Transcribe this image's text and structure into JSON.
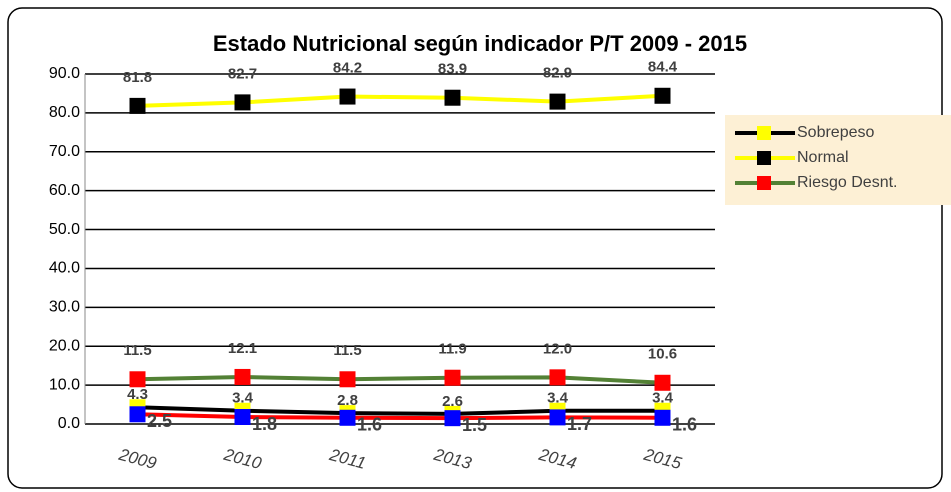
{
  "chart_data": {
    "type": "line",
    "title": "Estado Nutricional según indicador P/T 2009 - 2015",
    "categories": [
      "2009",
      "2010",
      "2011",
      "2013",
      "2014",
      "2015"
    ],
    "series": [
      {
        "name": "Sobrepeso",
        "color": "#000000",
        "marker_color": "#ffff00",
        "values": [
          4.3,
          3.4,
          2.8,
          2.6,
          3.4,
          3.4
        ]
      },
      {
        "name": "Normal",
        "color": "#ffff00",
        "marker_color": "#000000",
        "values": [
          81.8,
          82.7,
          84.2,
          83.9,
          82.9,
          84.4
        ]
      },
      {
        "name": "Riesgo Desnt.",
        "color": "#538135",
        "marker_color": "#ff0000",
        "values": [
          11.5,
          12.1,
          11.5,
          11.9,
          12.0,
          10.6
        ],
        "value_labels": [
          "11.5",
          "12.1",
          "11.5",
          "11.9",
          "12.0",
          "10.6"
        ]
      },
      {
        "color": "#ff0000",
        "marker_color": "#0000ff",
        "values": [
          2.5,
          1.8,
          1.6,
          1.5,
          1.7,
          1.6
        ]
      }
    ],
    "ylim": [
      0,
      90
    ],
    "yticks": [
      {
        "value": 0,
        "label": "0.0"
      },
      {
        "value": 10,
        "label": "10.0"
      },
      {
        "value": 20,
        "label": "20.0"
      },
      {
        "value": 30,
        "label": "30.0"
      },
      {
        "value": 40,
        "label": "40.0"
      },
      {
        "value": 50,
        "label": "50.0"
      },
      {
        "value": 60,
        "label": "60.0"
      },
      {
        "value": 70,
        "label": "70.0"
      },
      {
        "value": 80,
        "label": "80.0"
      },
      {
        "value": 90,
        "label": "90.0"
      }
    ],
    "grid": true,
    "legend": "right"
  }
}
